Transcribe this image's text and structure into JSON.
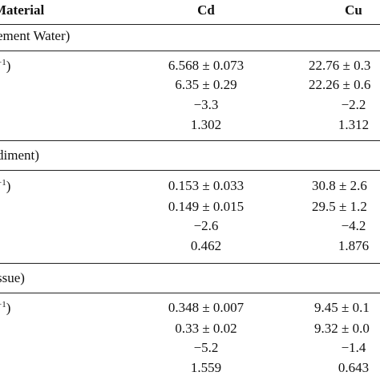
{
  "table": {
    "header": [
      "Material",
      "Cd",
      "Cu"
    ],
    "sections": [
      {
        "title": "ement Water)",
        "unit_sup": "−1",
        "unit_tail": ")",
        "rows": [
          [
            "6.568 ± 0.073",
            "22.76 ± 0.3"
          ],
          [
            "6.35 ± 0.29",
            "22.26 ± 0.6"
          ],
          [
            "−3.3",
            "−2.2"
          ],
          [
            "1.302",
            "1.312"
          ]
        ]
      },
      {
        "title": "diment)",
        "unit_sup": "−1",
        "unit_tail": ")",
        "rows": [
          [
            "0.153 ± 0.033",
            "30.8 ± 2.6"
          ],
          [
            "0.149 ± 0.015",
            "29.5 ± 1.2"
          ],
          [
            "−2.6",
            "−4.2"
          ],
          [
            "0.462",
            "1.876"
          ]
        ]
      },
      {
        "title": "ssue)",
        "unit_sup": "−1",
        "unit_tail": ")",
        "rows": [
          [
            "0.348 ± 0.007",
            "9.45 ± 0.1"
          ],
          [
            "0.33 ± 0.02",
            "9.32 ± 0.0"
          ],
          [
            "−5.2",
            "−1.4"
          ],
          [
            "1.559",
            "0.643"
          ]
        ]
      }
    ]
  }
}
